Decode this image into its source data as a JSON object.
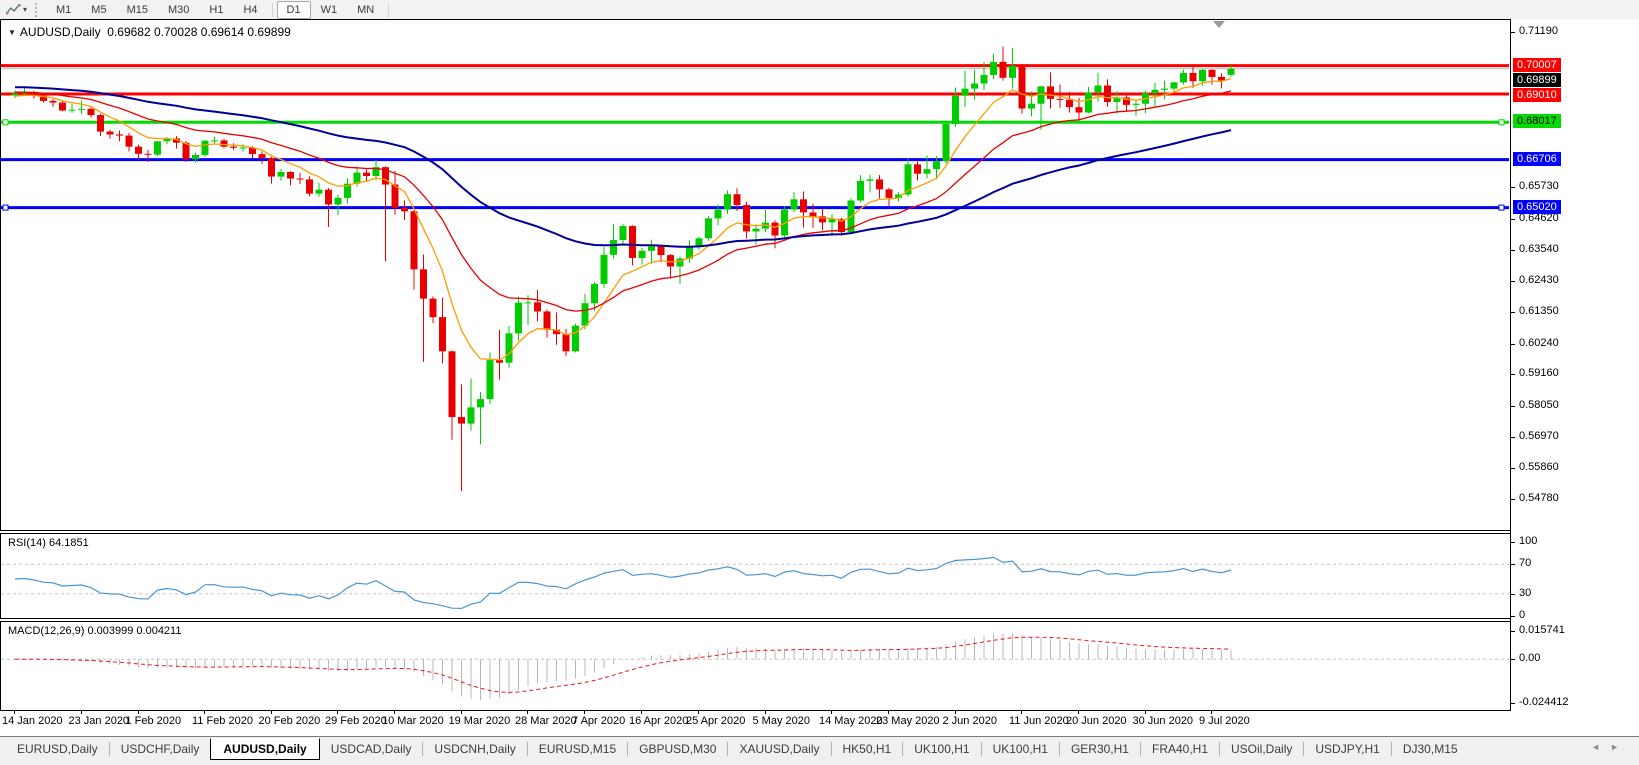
{
  "toolbar": {
    "timeframes": [
      "M1",
      "M5",
      "M15",
      "M30",
      "H1",
      "H4",
      "D1",
      "W1",
      "MN"
    ],
    "active_timeframe": "D1"
  },
  "icons": {
    "title_marker": "▼",
    "dropdown_caret": "▾",
    "tab_scroll_left": "◄",
    "tab_scroll_right": "►"
  },
  "chart_header": {
    "symbol_label": "AUDUSD,Daily",
    "ohlc_label": "0.69682 0.70028 0.69614 0.69899"
  },
  "indicators": {
    "rsi_label": "RSI(14) 64.1851",
    "macd_label": "MACD(12,26,9) 0.003999 0.004211"
  },
  "price_axis": {
    "ticks": [
      "0.71190",
      "0.65730",
      "0.64620",
      "0.63540",
      "0.62430",
      "0.61350",
      "0.60240",
      "0.59160",
      "0.58050",
      "0.56970",
      "0.55860",
      "0.54780"
    ],
    "line_labels": [
      {
        "text": "0.70007",
        "bg": "#ff0000",
        "fg": "#ffffff"
      },
      {
        "text": "0.69899",
        "bg": "#000000",
        "fg": "#ffffff"
      },
      {
        "text": "0.69010",
        "bg": "#ff0000",
        "fg": "#ffffff"
      },
      {
        "text": "0.68017",
        "bg": "#00dc00",
        "fg": "#000000"
      },
      {
        "text": "0.66706",
        "bg": "#0000ff",
        "fg": "#ffffff"
      },
      {
        "text": "0.65020",
        "bg": "#0000ff",
        "fg": "#ffffff"
      }
    ]
  },
  "rsi_axis": [
    "100",
    "70",
    "30",
    "0"
  ],
  "macd_axis": [
    "0.015741",
    "0.00",
    "-0.024412"
  ],
  "time_axis": {
    "labels": [
      "14 Jan 2020",
      "23 Jan 2020",
      "1 Feb 2020",
      "11 Feb 2020",
      "20 Feb 2020",
      "29 Feb 2020",
      "10 Mar 2020",
      "19 Mar 2020",
      "28 Mar 2020",
      "7 Apr 2020",
      "16 Apr 2020",
      "25 Apr 2020",
      "5 May 2020",
      "14 May 2020",
      "23 May 2020",
      "2 Jun 2020",
      "11 Jun 2020",
      "20 Jun 2020",
      "30 Jun 2020",
      "9 Jul 2020"
    ],
    "candle_indices": [
      0,
      7,
      13,
      20,
      27,
      34,
      40,
      47,
      54,
      60,
      66,
      72,
      79,
      86,
      92,
      99,
      106,
      112,
      119,
      126
    ]
  },
  "tabs": {
    "items": [
      "EURUSD,Daily",
      "USDCHF,Daily",
      "AUDUSD,Daily",
      "USDCAD,Daily",
      "USDCNH,Daily",
      "EURUSD,M15",
      "GBPUSD,M30",
      "XAUUSD,Daily",
      "HK50,H1",
      "UK100,H1",
      "UK100,H1",
      "GER30,H1",
      "FRA40,H1",
      "USOil,Daily",
      "USDJPY,H1",
      "DJ30,M15"
    ],
    "active_index": 2
  },
  "chart_data": {
    "type": "candlestick",
    "title": "AUDUSD Daily",
    "ylim": [
      0.5478,
      0.7119
    ],
    "up_color": "#00cc00",
    "down_color": "#e80000",
    "current_price": {
      "price": 0.69899,
      "line_color": "#bbbbbb"
    },
    "horizontal_lines": [
      {
        "price": 0.70007,
        "color": "#ff0000",
        "width": 3,
        "handles": false
      },
      {
        "price": 0.6901,
        "color": "#ff0000",
        "width": 3,
        "handles": false
      },
      {
        "price": 0.68017,
        "color": "#00dc00",
        "width": 3,
        "handles": true
      },
      {
        "price": 0.66706,
        "color": "#0000ff",
        "width": 3,
        "handles": false
      },
      {
        "price": 0.6502,
        "color": "#0000ff",
        "width": 3,
        "handles": true
      }
    ],
    "moving_averages": [
      {
        "period": 8,
        "color": "#ff9c00",
        "width": 1.3,
        "start": 0.6891
      },
      {
        "period": 21,
        "color": "#e60000",
        "width": 1.3,
        "start": 0.6908
      },
      {
        "period": 55,
        "color": "#000099",
        "width": 2,
        "start": 0.6926
      }
    ],
    "rsi": {
      "period": 14,
      "last": 64.1851,
      "levels": [
        30,
        70
      ],
      "range": [
        0,
        100
      ],
      "color": "#4a96d2"
    },
    "macd": {
      "fast": 12,
      "slow": 26,
      "signal": 9,
      "last_main": 0.003999,
      "last_signal": 0.004211,
      "range": [
        -0.024412,
        0.015741
      ],
      "hist_color": "#b8b8b8",
      "signal_color": "#e81717"
    },
    "candles": [
      [
        0.6896,
        0.6914,
        0.6887,
        0.6903
      ],
      [
        0.6903,
        0.6922,
        0.6895,
        0.6907
      ],
      [
        0.6907,
        0.6912,
        0.6885,
        0.6895
      ],
      [
        0.6895,
        0.6901,
        0.6871,
        0.6877
      ],
      [
        0.6877,
        0.6883,
        0.6856,
        0.6871
      ],
      [
        0.6871,
        0.6878,
        0.684,
        0.6843
      ],
      [
        0.6843,
        0.6866,
        0.6835,
        0.6846
      ],
      [
        0.6846,
        0.6878,
        0.6831,
        0.6849
      ],
      [
        0.6849,
        0.6854,
        0.6818,
        0.6827
      ],
      [
        0.6827,
        0.6831,
        0.6754,
        0.6769
      ],
      [
        0.6769,
        0.6775,
        0.6744,
        0.6759
      ],
      [
        0.6759,
        0.6773,
        0.6735,
        0.6755
      ],
      [
        0.6755,
        0.6765,
        0.6699,
        0.6716
      ],
      [
        0.6716,
        0.6723,
        0.667,
        0.6691
      ],
      [
        0.6691,
        0.6705,
        0.6662,
        0.6688
      ],
      [
        0.6688,
        0.6736,
        0.6683,
        0.6735
      ],
      [
        0.6735,
        0.675,
        0.6724,
        0.6745
      ],
      [
        0.6745,
        0.6753,
        0.6709,
        0.673
      ],
      [
        0.673,
        0.6736,
        0.6662,
        0.6672
      ],
      [
        0.6672,
        0.6695,
        0.666,
        0.6687
      ],
      [
        0.6687,
        0.674,
        0.668,
        0.6737
      ],
      [
        0.6737,
        0.675,
        0.6728,
        0.6738
      ],
      [
        0.6738,
        0.6744,
        0.671,
        0.6716
      ],
      [
        0.6716,
        0.6728,
        0.6703,
        0.6712
      ],
      [
        0.6712,
        0.6724,
        0.6698,
        0.6713
      ],
      [
        0.6713,
        0.6718,
        0.6674,
        0.669
      ],
      [
        0.669,
        0.67,
        0.6656,
        0.6676
      ],
      [
        0.6676,
        0.668,
        0.6586,
        0.6611
      ],
      [
        0.6611,
        0.6638,
        0.6596,
        0.6627
      ],
      [
        0.6627,
        0.663,
        0.658,
        0.6604
      ],
      [
        0.6604,
        0.6624,
        0.6585,
        0.6601
      ],
      [
        0.6601,
        0.6612,
        0.6542,
        0.6551
      ],
      [
        0.6551,
        0.6589,
        0.654,
        0.6565
      ],
      [
        0.6565,
        0.6571,
        0.6434,
        0.6513
      ],
      [
        0.6513,
        0.6548,
        0.6476,
        0.6536
      ],
      [
        0.6536,
        0.6605,
        0.6517,
        0.6586
      ],
      [
        0.6586,
        0.6645,
        0.6576,
        0.6625
      ],
      [
        0.6625,
        0.6637,
        0.6594,
        0.6613
      ],
      [
        0.6613,
        0.6669,
        0.6598,
        0.6644
      ],
      [
        0.6644,
        0.6647,
        0.6313,
        0.6583
      ],
      [
        0.6583,
        0.663,
        0.6477,
        0.6501
      ],
      [
        0.6501,
        0.6527,
        0.6458,
        0.6489
      ],
      [
        0.6489,
        0.6494,
        0.6214,
        0.6285
      ],
      [
        0.6285,
        0.6337,
        0.596,
        0.6182
      ],
      [
        0.6182,
        0.619,
        0.6096,
        0.6117
      ],
      [
        0.6117,
        0.6185,
        0.5955,
        0.5997
      ],
      [
        0.5997,
        0.6,
        0.5686,
        0.5766
      ],
      [
        0.5766,
        0.5881,
        0.5506,
        0.5743
      ],
      [
        0.5743,
        0.5902,
        0.5718,
        0.58
      ],
      [
        0.58,
        0.5854,
        0.567,
        0.5829
      ],
      [
        0.5829,
        0.5993,
        0.5811,
        0.5966
      ],
      [
        0.5966,
        0.6072,
        0.5897,
        0.5957
      ],
      [
        0.5957,
        0.6087,
        0.5939,
        0.606
      ],
      [
        0.606,
        0.619,
        0.6034,
        0.6168
      ],
      [
        0.6168,
        0.6194,
        0.609,
        0.6169
      ],
      [
        0.6169,
        0.6213,
        0.6103,
        0.6137
      ],
      [
        0.6137,
        0.6144,
        0.6045,
        0.6073
      ],
      [
        0.6073,
        0.6134,
        0.602,
        0.6057
      ],
      [
        0.6057,
        0.6076,
        0.598,
        0.5997
      ],
      [
        0.5997,
        0.6094,
        0.5993,
        0.6087
      ],
      [
        0.6087,
        0.6199,
        0.6074,
        0.6166
      ],
      [
        0.6166,
        0.624,
        0.6139,
        0.6234
      ],
      [
        0.6234,
        0.6363,
        0.622,
        0.6336
      ],
      [
        0.6336,
        0.6444,
        0.6322,
        0.6388
      ],
      [
        0.6388,
        0.6445,
        0.637,
        0.6437
      ],
      [
        0.6437,
        0.644,
        0.6299,
        0.6325
      ],
      [
        0.6325,
        0.636,
        0.6301,
        0.635
      ],
      [
        0.635,
        0.6389,
        0.6305,
        0.6366
      ],
      [
        0.6366,
        0.6371,
        0.631,
        0.6335
      ],
      [
        0.6335,
        0.6339,
        0.6253,
        0.6295
      ],
      [
        0.6295,
        0.633,
        0.6234,
        0.6323
      ],
      [
        0.6323,
        0.6387,
        0.6308,
        0.6366
      ],
      [
        0.6366,
        0.64,
        0.6354,
        0.6394
      ],
      [
        0.6394,
        0.6472,
        0.6385,
        0.6464
      ],
      [
        0.6464,
        0.6513,
        0.644,
        0.6495
      ],
      [
        0.6495,
        0.6562,
        0.648,
        0.6549
      ],
      [
        0.6549,
        0.657,
        0.649,
        0.6511
      ],
      [
        0.6511,
        0.6523,
        0.6393,
        0.6418
      ],
      [
        0.6418,
        0.6443,
        0.6372,
        0.6428
      ],
      [
        0.6428,
        0.6494,
        0.6415,
        0.6449
      ],
      [
        0.6449,
        0.6457,
        0.6359,
        0.6404
      ],
      [
        0.6404,
        0.6506,
        0.6398,
        0.6495
      ],
      [
        0.6495,
        0.6556,
        0.6486,
        0.6531
      ],
      [
        0.6531,
        0.6559,
        0.6432,
        0.6485
      ],
      [
        0.6485,
        0.6515,
        0.6431,
        0.6471
      ],
      [
        0.6471,
        0.6502,
        0.6423,
        0.645
      ],
      [
        0.645,
        0.6479,
        0.6402,
        0.6461
      ],
      [
        0.6461,
        0.6466,
        0.6403,
        0.6416
      ],
      [
        0.6416,
        0.6535,
        0.641,
        0.6527
      ],
      [
        0.6527,
        0.6616,
        0.652,
        0.6596
      ],
      [
        0.6596,
        0.6617,
        0.6555,
        0.6601
      ],
      [
        0.6601,
        0.6616,
        0.6534,
        0.6566
      ],
      [
        0.6566,
        0.6572,
        0.6507,
        0.6536
      ],
      [
        0.6536,
        0.6556,
        0.6523,
        0.6548
      ],
      [
        0.6548,
        0.6674,
        0.6541,
        0.6654
      ],
      [
        0.6654,
        0.6665,
        0.6597,
        0.6621
      ],
      [
        0.6621,
        0.6685,
        0.6605,
        0.6637
      ],
      [
        0.6637,
        0.6683,
        0.6601,
        0.6665
      ],
      [
        0.6665,
        0.6808,
        0.6656,
        0.6796
      ],
      [
        0.6796,
        0.6924,
        0.6785,
        0.6895
      ],
      [
        0.6895,
        0.6983,
        0.6855,
        0.692
      ],
      [
        0.692,
        0.6987,
        0.6882,
        0.6938
      ],
      [
        0.6938,
        0.7013,
        0.6915,
        0.6968
      ],
      [
        0.6968,
        0.7043,
        0.6954,
        0.7014
      ],
      [
        0.7014,
        0.7068,
        0.6948,
        0.6958
      ],
      [
        0.6958,
        0.7063,
        0.6921,
        0.7
      ],
      [
        0.7,
        0.7007,
        0.6832,
        0.685
      ],
      [
        0.685,
        0.691,
        0.6822,
        0.6867
      ],
      [
        0.6867,
        0.693,
        0.6776,
        0.6928
      ],
      [
        0.6928,
        0.6977,
        0.685,
        0.6884
      ],
      [
        0.6884,
        0.6934,
        0.6852,
        0.6881
      ],
      [
        0.6881,
        0.6908,
        0.6836,
        0.6855
      ],
      [
        0.6855,
        0.6888,
        0.6809,
        0.6836
      ],
      [
        0.6836,
        0.6926,
        0.6833,
        0.6907
      ],
      [
        0.6907,
        0.6976,
        0.6874,
        0.6931
      ],
      [
        0.6931,
        0.6953,
        0.6856,
        0.6873
      ],
      [
        0.6873,
        0.6911,
        0.6832,
        0.6889
      ],
      [
        0.6889,
        0.6904,
        0.6839,
        0.6863
      ],
      [
        0.6863,
        0.6879,
        0.6825,
        0.6867
      ],
      [
        0.6867,
        0.6913,
        0.6834,
        0.6904
      ],
      [
        0.6904,
        0.6941,
        0.6858,
        0.6916
      ],
      [
        0.6916,
        0.6948,
        0.6883,
        0.692
      ],
      [
        0.692,
        0.6944,
        0.6906,
        0.6942
      ],
      [
        0.6942,
        0.6987,
        0.6934,
        0.6975
      ],
      [
        0.6975,
        0.6999,
        0.6923,
        0.6946
      ],
      [
        0.6946,
        0.6989,
        0.6931,
        0.6986
      ],
      [
        0.6986,
        0.6988,
        0.6934,
        0.6961
      ],
      [
        0.6961,
        0.6973,
        0.6921,
        0.6948
      ],
      [
        0.69682,
        0.70028,
        0.69614,
        0.69899
      ]
    ]
  }
}
